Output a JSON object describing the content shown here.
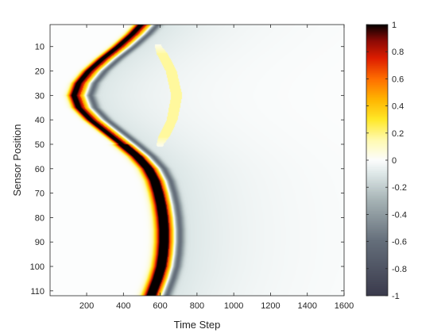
{
  "chart_data": {
    "type": "heatmap",
    "xlabel": "Time Step",
    "ylabel": "Sensor Position",
    "title": "",
    "xlim": [
      1,
      1600
    ],
    "ylim": [
      1,
      112
    ],
    "y_reversed": true,
    "xticks": [
      200,
      400,
      600,
      800,
      1000,
      1200,
      1400,
      1600
    ],
    "yticks": [
      10,
      20,
      30,
      40,
      50,
      60,
      70,
      80,
      90,
      100,
      110
    ],
    "colorbar": {
      "range": [
        -1,
        1
      ],
      "ticks": [
        1,
        0.8,
        0.6,
        0.4,
        0.2,
        0,
        -0.2,
        -0.4,
        -0.6,
        -0.8,
        -1
      ],
      "tick_labels": [
        "1",
        "0.8",
        "0.6",
        "0.4",
        "0.2",
        "0",
        "-0.2",
        "-0.4",
        "-0.6",
        "-0.8",
        "-1"
      ],
      "colormap": "negative = slate-blue to gray, 0 = white, positive = yellow to orange to red to black"
    },
    "wavefront": {
      "position": [
        1,
        5,
        10,
        15,
        20,
        25,
        30,
        35,
        40,
        45,
        50,
        55,
        60,
        65,
        70,
        75,
        80,
        85,
        90,
        95,
        100,
        105,
        112
      ],
      "arrival_time_step": [
        490,
        440,
        365,
        280,
        205,
        150,
        125,
        150,
        215,
        300,
        385,
        465,
        525,
        560,
        580,
        595,
        605,
        610,
        610,
        605,
        595,
        575,
        540
      ]
    },
    "secondary_arc": {
      "value": 0.15,
      "position": [
        10,
        20,
        30,
        40,
        50
      ],
      "time_step": [
        590,
        660,
        690,
        665,
        600
      ]
    },
    "grid": false,
    "legend": "none"
  }
}
